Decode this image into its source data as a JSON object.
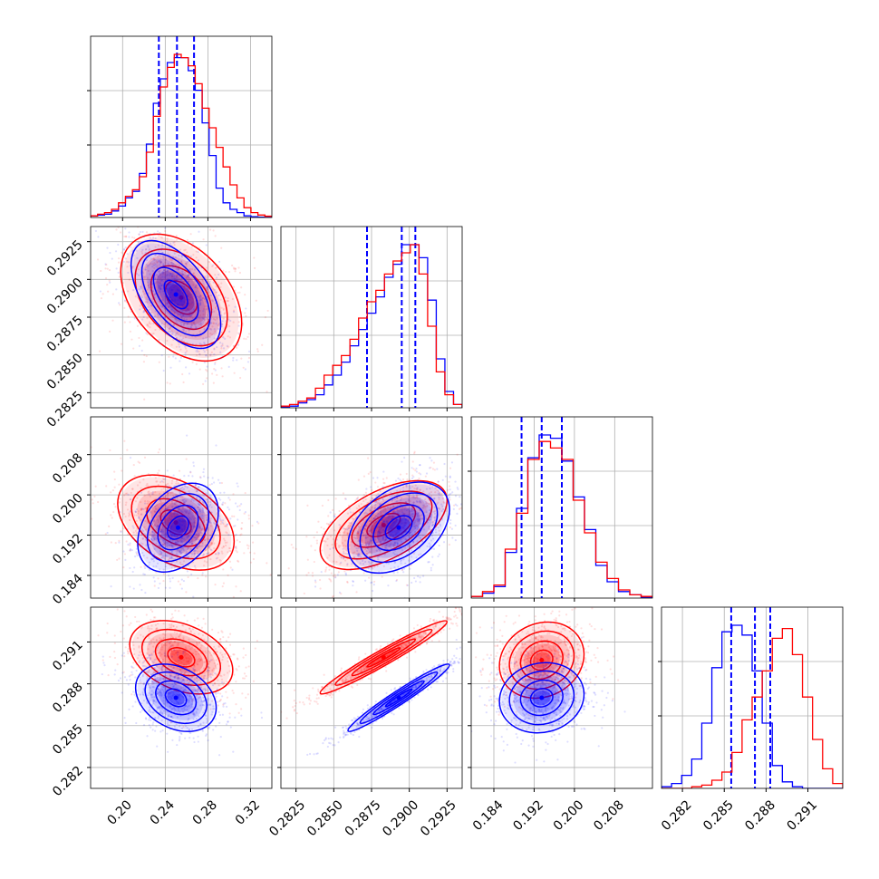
{
  "chart_data": {
    "type": "corner",
    "series": [
      {
        "name": "",
        "color": "#ff0000"
      },
      {
        "name": "",
        "color": "#0000ff"
      }
    ],
    "params": [
      {
        "range": [
          0.17,
          0.34
        ],
        "ticks": [
          "0.20",
          "0.24",
          "0.28",
          "0.32"
        ]
      },
      {
        "range": [
          0.2815,
          0.2935
        ],
        "ticks": [
          "0.2825",
          "0.2850",
          "0.2875",
          "0.2900",
          "0.2925"
        ]
      },
      {
        "range": [
          0.1795,
          0.2155
        ],
        "ticks": [
          "0.184",
          "0.192",
          "0.200",
          "0.208"
        ]
      },
      {
        "range": [
          0.2805,
          0.2935
        ],
        "ticks": [
          "0.282",
          "0.285",
          "0.288",
          "0.291"
        ]
      }
    ],
    "quantile_lines": [
      [
        0.234,
        0.251,
        0.267
      ],
      [
        0.2872,
        0.2895,
        0.2904
      ],
      [
        0.1895,
        0.1935,
        0.1975
      ],
      [
        0.2855,
        0.2872,
        0.2883
      ]
    ],
    "marginals": [
      {
        "red": [
          0.01,
          0.02,
          0.03,
          0.05,
          0.09,
          0.13,
          0.17,
          0.25,
          0.4,
          0.62,
          0.8,
          0.92,
          1.0,
          0.98,
          0.93,
          0.82,
          0.67,
          0.55,
          0.43,
          0.31,
          0.2,
          0.12,
          0.06,
          0.03,
          0.015,
          0.008
        ],
        "blue": [
          0.01,
          0.015,
          0.02,
          0.04,
          0.07,
          0.12,
          0.16,
          0.27,
          0.45,
          0.7,
          0.85,
          0.95,
          0.98,
          0.98,
          0.9,
          0.78,
          0.58,
          0.38,
          0.18,
          0.09,
          0.05,
          0.03,
          0.01,
          0.005,
          0.002,
          0.001
        ]
      },
      {
        "red": [
          0.01,
          0.02,
          0.04,
          0.06,
          0.12,
          0.2,
          0.26,
          0.32,
          0.42,
          0.55,
          0.65,
          0.72,
          0.82,
          0.9,
          0.95,
          1.0,
          0.82,
          0.5,
          0.22,
          0.08,
          0.02
        ],
        "blue": [
          0.005,
          0.01,
          0.03,
          0.05,
          0.08,
          0.14,
          0.2,
          0.28,
          0.38,
          0.48,
          0.58,
          0.68,
          0.8,
          0.88,
          1.0,
          1.0,
          0.92,
          0.66,
          0.3,
          0.1,
          0.02
        ]
      },
      {
        "red": [
          0.01,
          0.04,
          0.08,
          0.3,
          0.52,
          0.85,
          0.96,
          0.92,
          0.85,
          0.6,
          0.4,
          0.22,
          0.12,
          0.05,
          0.02,
          0.01
        ],
        "blue": [
          0.01,
          0.03,
          0.07,
          0.28,
          0.55,
          0.86,
          1.0,
          0.98,
          0.84,
          0.62,
          0.42,
          0.2,
          0.1,
          0.04,
          0.02,
          0.005
        ]
      },
      {
        "red": [
          0.0,
          0.0,
          0.0,
          0.01,
          0.02,
          0.05,
          0.1,
          0.22,
          0.42,
          0.56,
          0.72,
          0.92,
          0.98,
          0.82,
          0.56,
          0.3,
          0.12,
          0.03
        ],
        "blue": [
          0.01,
          0.03,
          0.08,
          0.18,
          0.4,
          0.74,
          0.96,
          1.0,
          0.94,
          0.72,
          0.4,
          0.14,
          0.04,
          0.01,
          0.0,
          0.0,
          0.0,
          0.0
        ]
      }
    ],
    "joint": {
      "1-0": {
        "red": {
          "mean": [
            0.255,
            0.2888
          ],
          "sd": [
            0.027,
            0.002
          ],
          "rho": -0.4
        },
        "blue": {
          "mean": [
            0.25,
            0.289
          ],
          "sd": [
            0.02,
            0.0017
          ],
          "rho": -0.55
        }
      },
      "2-0": {
        "red": {
          "mean": [
            0.25,
            0.1945
          ],
          "sd": [
            0.026,
            0.0045
          ],
          "rho": -0.4
        },
        "blue": {
          "mean": [
            0.252,
            0.1935
          ],
          "sd": [
            0.018,
            0.0042
          ],
          "rho": 0.35
        }
      },
      "2-1": {
        "red": {
          "mean": [
            0.2883,
            0.194
          ],
          "sd": [
            0.002,
            0.0042
          ],
          "rho": 0.55
        },
        "blue": {
          "mean": [
            0.2893,
            0.1935
          ],
          "sd": [
            0.0016,
            0.0043
          ],
          "rho": 0.4
        }
      },
      "3-0": {
        "red": {
          "mean": [
            0.255,
            0.2899
          ],
          "sd": [
            0.023,
            0.00125
          ],
          "rho": -0.35
        },
        "blue": {
          "mean": [
            0.25,
            0.287
          ],
          "sd": [
            0.018,
            0.00115
          ],
          "rho": -0.3
        }
      },
      "3-1": {
        "red": {
          "mean": [
            0.2883,
            0.2899
          ],
          "sd": [
            0.002,
            0.00125
          ],
          "rho": 0.97
        },
        "blue": {
          "mean": [
            0.2893,
            0.287
          ],
          "sd": [
            0.0016,
            0.00115
          ],
          "rho": 0.97
        }
      },
      "3-2": {
        "red": {
          "mean": [
            0.1935,
            0.2897
          ],
          "sd": [
            0.004,
            0.0013
          ],
          "rho": 0.15
        },
        "blue": {
          "mean": [
            0.1935,
            0.287
          ],
          "sd": [
            0.004,
            0.0012
          ],
          "rho": 0.1
        }
      }
    },
    "grid": true,
    "title": "",
    "axis_labels": []
  }
}
